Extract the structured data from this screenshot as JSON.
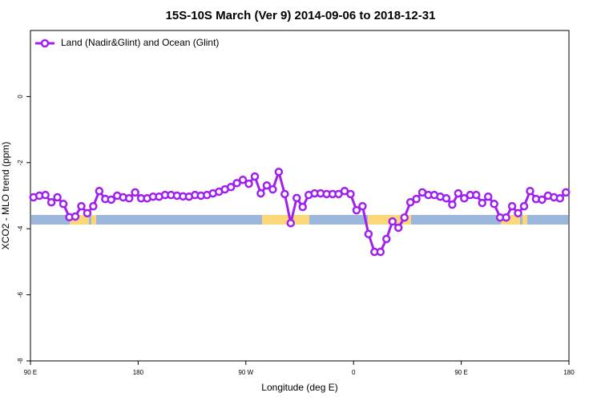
{
  "chart_data": {
    "type": "line",
    "title": "15S-10S March (Ver 9)   2014-09-06 to 2018-12-31",
    "xlabel": "Longitude (deg E)",
    "ylabel": "XCO2 - MLO trend (ppm)",
    "legend": "top-left",
    "xlim": [
      90,
      540
    ],
    "xticks": [
      {
        "value": 90,
        "label": "90 E"
      },
      180,
      {
        "value": 270,
        "label": "90 W"
      },
      {
        "value": 360,
        "label": "0"
      },
      {
        "value": 450,
        "label": "90 E"
      },
      {
        "value": 540,
        "label": "180"
      }
    ],
    "ylim": [
      -8,
      2
    ],
    "yticks": [
      0,
      -2,
      -4,
      -6,
      -8
    ],
    "x": [
      92.5,
      97.5,
      102.5,
      107.5,
      112.5,
      117.5,
      122.5,
      127.5,
      132.5,
      137.5,
      142.5,
      147.5,
      152.5,
      157.5,
      162.5,
      167.5,
      172.5,
      177.5,
      182.5,
      187.5,
      192.5,
      197.5,
      202.5,
      207.5,
      212.5,
      217.5,
      222.5,
      227.5,
      232.5,
      237.5,
      242.5,
      247.5,
      252.5,
      257.5,
      262.5,
      267.5,
      272.5,
      277.5,
      282.5,
      287.5,
      292.5,
      297.5,
      302.5,
      307.5,
      312.5,
      317.5,
      322.5,
      327.5,
      332.5,
      337.5,
      342.5,
      347.5,
      352.5,
      357.5,
      362.5,
      367.5,
      372.5,
      377.5,
      382.5,
      387.5,
      392.5,
      397.5,
      402.5,
      407.5,
      412.5,
      417.5,
      422.5,
      427.5,
      432.5,
      437.5,
      442.5,
      447.5,
      452.5,
      457.5,
      462.5,
      467.5,
      472.5,
      477.5,
      482.5,
      487.5,
      492.5,
      497.5,
      502.5,
      507.5,
      512.5,
      517.5,
      522.5,
      527.5,
      532.5,
      537.5
    ],
    "series": [
      {
        "name": "Land (Nadir&Glint) and Ocean (Glint)",
        "color": "#a020f0",
        "values": [
          -3.05,
          -3.0,
          -2.98,
          -3.2,
          -3.05,
          -3.25,
          -3.65,
          -3.63,
          -3.32,
          -3.53,
          -3.32,
          -2.86,
          -3.1,
          -3.12,
          -3.0,
          -3.05,
          -3.08,
          -2.9,
          -3.08,
          -3.08,
          -3.03,
          -3.03,
          -2.98,
          -2.98,
          -3.0,
          -3.02,
          -3.03,
          -2.98,
          -3.0,
          -2.98,
          -2.93,
          -2.88,
          -2.81,
          -2.74,
          -2.62,
          -2.52,
          -2.64,
          -2.42,
          -2.93,
          -2.69,
          -2.81,
          -2.28,
          -2.95,
          -3.83,
          -3.07,
          -3.34,
          -2.98,
          -2.93,
          -2.93,
          -2.95,
          -2.95,
          -2.95,
          -2.86,
          -2.95,
          -3.44,
          -3.32,
          -4.16,
          -4.7,
          -4.7,
          -4.31,
          -3.78,
          -3.97,
          -3.66,
          -3.2,
          -3.1,
          -2.9,
          -2.98,
          -2.98,
          -3.03,
          -3.08,
          -3.27,
          -2.93,
          -3.08,
          -2.98,
          -2.98,
          -3.22,
          -3.03,
          -3.25,
          -3.66,
          -3.66,
          -3.32,
          -3.53,
          -3.32,
          -2.86,
          -3.1,
          -3.12,
          -3.0,
          -3.05,
          -3.08,
          -2.9
        ]
      }
    ]
  }
}
